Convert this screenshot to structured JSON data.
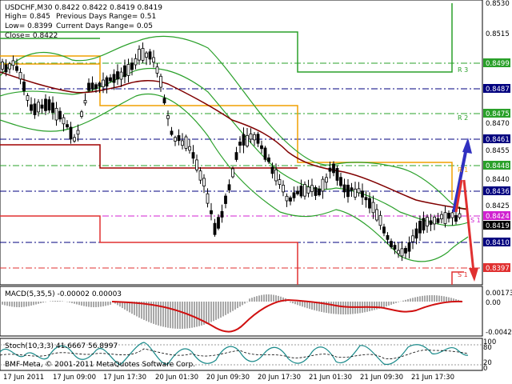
{
  "symbol_header": "USDCHF,M30  0.8422 0.8422 0.8419 0.8419",
  "info": {
    "high": "High= 0.845",
    "low": "Low= 0.8399",
    "close": "Close= 0.8422",
    "prev_range": "Previous Days Range= 0.51",
    "curr_range": "Current Days Range= 0.05"
  },
  "price_axis": [
    "0.8530",
    "0.8515",
    "0.8470",
    "0.8455",
    "0.8440",
    "0.8425"
  ],
  "price_boxes": [
    {
      "label": "0.8499",
      "color": "#2aa02a"
    },
    {
      "label": "0.8487",
      "color": "#00007f"
    },
    {
      "label": "0.8475",
      "color": "#2aa02a"
    },
    {
      "label": "0.8461",
      "color": "#00007f"
    },
    {
      "label": "0.8448",
      "color": "#2aa02a"
    },
    {
      "label": "0.8436",
      "color": "#00007f"
    },
    {
      "label": "0.8424",
      "color": "#d020d0"
    },
    {
      "label": "0.8419",
      "color": "#000000"
    },
    {
      "label": "0.8410",
      "color": "#00007f"
    },
    {
      "label": "0.8397",
      "color": "#e03030"
    }
  ],
  "sr_labels": [
    "R 3",
    "R 2",
    "R 1",
    "S 1",
    "S 1"
  ],
  "macd": {
    "label": "MACD(5,35,5) -0.00002 0.00003",
    "axis": [
      "0.00173",
      "0.00",
      "-0.00421"
    ]
  },
  "stoch": {
    "label": "Stoch(10,3,3) 41.6667 56.8997",
    "axis": [
      "100",
      "80",
      "20",
      "0"
    ]
  },
  "copyright": "BMF-Meta, © 2001-2011 MetaQuotes Software Corp.",
  "time_axis": [
    "17 Jun 2011",
    "17 Jun 09:00",
    "17 Jun 17:30",
    "20 Jun 01:30",
    "20 Jun 09:30",
    "20 Jun 17:30",
    "21 Jun 01:30",
    "21 Jun 09:30",
    "21 Jun 17:30"
  ],
  "colors": {
    "bull_candle": "#000000",
    "bear_candle": "#000000",
    "bands": "#2aa02a",
    "ma": "#800000",
    "up_arrow": "#3030c0",
    "down_arrow": "#e03030"
  }
}
